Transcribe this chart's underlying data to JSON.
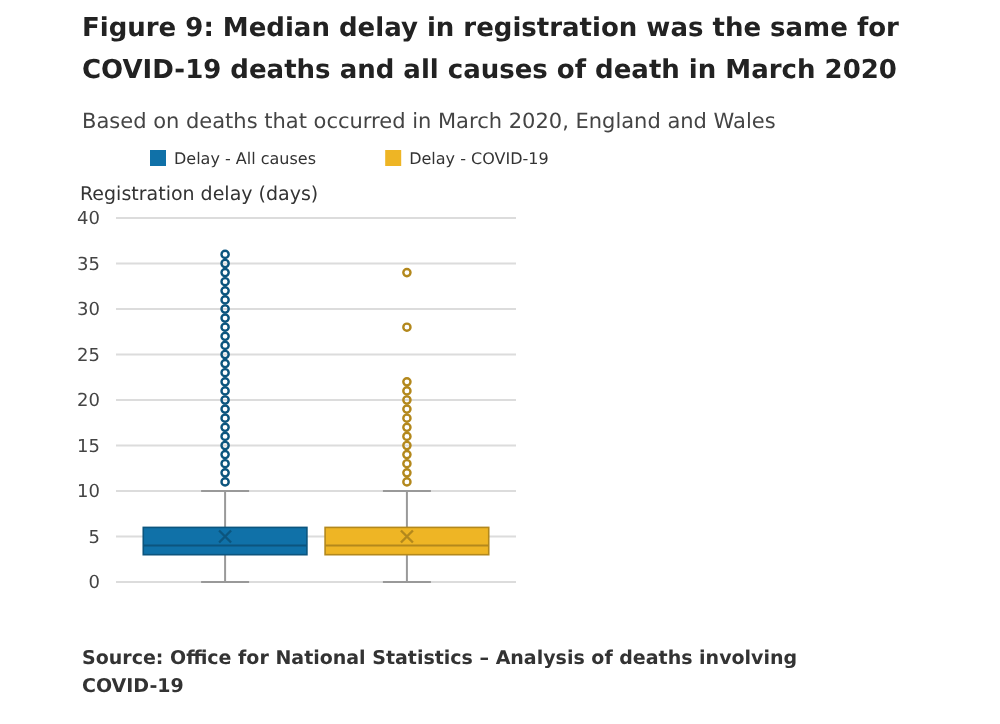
{
  "chart_data": {
    "type": "box",
    "title": "Figure 9: Median delay in registration was the same for COVID-19 deaths and all causes of death in March 2020",
    "subtitle": "Based on deaths that occurred in March 2020, England and Wales",
    "ylabel": "Registration delay (days)",
    "categories": [
      null,
      null
    ],
    "ylim": [
      0,
      40
    ],
    "yticks": [
      0,
      5,
      10,
      15,
      20,
      25,
      30,
      35,
      40
    ],
    "grid": "y",
    "legend": "top",
    "marker": "circle",
    "series": [
      {
        "name": "Delay - All causes",
        "color": "#1071a8",
        "boxes": [
          {
            "low": 0,
            "q1": 3,
            "median": 4,
            "q3": 6,
            "high": 10,
            "mean": 5,
            "outliers": [
              11,
              12,
              13,
              14,
              15,
              16,
              17,
              18,
              19,
              20,
              21,
              22,
              23,
              24,
              25,
              26,
              27,
              28,
              29,
              30,
              31,
              32,
              33,
              34,
              35,
              36
            ]
          },
          null
        ]
      },
      {
        "name": "Delay - COVID-19",
        "color": "#eeb525",
        "boxes": [
          null,
          {
            "low": 0,
            "q1": 3,
            "median": 4,
            "q3": 6,
            "high": 10,
            "mean": 5,
            "outliers": [
              11,
              12,
              13,
              14,
              15,
              16,
              17,
              18,
              19,
              20,
              21,
              22,
              28,
              34
            ]
          }
        ]
      }
    ],
    "annotations": [
      "Source: Office for National Statistics – Analysis of deaths involving COVID-19"
    ]
  }
}
